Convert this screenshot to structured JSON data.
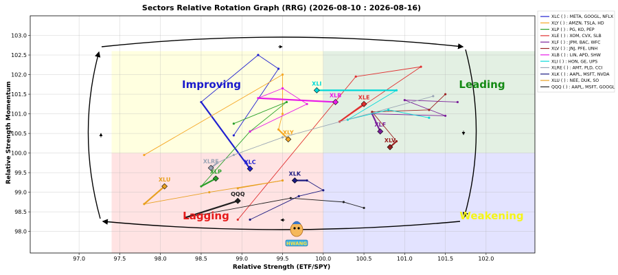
{
  "chart_data": {
    "type": "scatter",
    "title": "Sectors Relative Rotation Graph (RRG) (2026-08-10 : 2026-08-16)",
    "xlabel": "Relative Strength (ETF/SPY)",
    "ylabel": "Relative Strength Momentum",
    "xlim": [
      96.4,
      102.6
    ],
    "ylim": [
      97.45,
      103.5
    ],
    "xticks": [
      "97.0",
      "97.5",
      "98.0",
      "98.5",
      "99.0",
      "99.5",
      "100.0",
      "100.5",
      "101.0",
      "101.5",
      "102.0"
    ],
    "yticks": [
      "98.0",
      "98.5",
      "99.0",
      "99.5",
      "100.0",
      "100.5",
      "101.0",
      "101.5",
      "102.0",
      "102.5",
      "103.0"
    ],
    "center": [
      100,
      100
    ],
    "quadrants": {
      "improving": {
        "label": "Improving",
        "color": "#ffffe0",
        "text_color": "#1a1acc"
      },
      "leading": {
        "label": "Leading",
        "color": "#e3f0e3",
        "text_color": "#138a13"
      },
      "lagging": {
        "label": "Lagging",
        "color": "#ffe3e3",
        "text_color": "#e61a1a"
      },
      "weakening": {
        "label": "Weakening",
        "color": "#e3e3ff",
        "text_color": "#f5f518"
      }
    },
    "grid": true,
    "legend_position": "right",
    "series": [
      {
        "name": "XLC ( ) : META, GOOGL, NFLX",
        "label": "XLC",
        "color": "#2020d0",
        "points": [
          [
            98.9,
            100.45
          ],
          [
            99.45,
            102.15
          ],
          [
            99.2,
            102.5
          ],
          [
            98.5,
            101.3
          ],
          [
            99.1,
            99.6
          ]
        ]
      },
      {
        "name": "XLY ( ) : AMZN, TSLA, HD",
        "label": "XLY",
        "color": "#f5a623",
        "points": [
          [
            97.8,
            99.95
          ],
          [
            99.5,
            102.0
          ],
          [
            99.5,
            101.0
          ],
          [
            99.45,
            100.6
          ],
          [
            99.57,
            100.35
          ]
        ]
      },
      {
        "name": "XLP ( ) : PG, KO, PEP",
        "label": "XLP",
        "color": "#28a028",
        "points": [
          [
            98.9,
            100.75
          ],
          [
            99.55,
            101.3
          ],
          [
            99.1,
            100.55
          ],
          [
            98.5,
            99.15
          ],
          [
            98.68,
            99.35
          ]
        ]
      },
      {
        "name": "XLE ( ) : XOM, CVX, SLB",
        "label": "XLE",
        "color": "#e03030",
        "points": [
          [
            98.95,
            98.3
          ],
          [
            100.4,
            101.95
          ],
          [
            101.2,
            102.2
          ],
          [
            100.2,
            100.8
          ],
          [
            100.5,
            101.25
          ]
        ]
      },
      {
        "name": "XLF ( ) : JPM, BAC, WFC",
        "label": "XLF",
        "color": "#7a1f9a",
        "points": [
          [
            101.65,
            101.3
          ],
          [
            101.0,
            101.35
          ],
          [
            101.5,
            100.95
          ],
          [
            100.6,
            101.0
          ],
          [
            100.7,
            100.55
          ]
        ]
      },
      {
        "name": "XLV ( ) : JNJ, PFE, UNH",
        "label": "XLV",
        "color": "#9a2020",
        "points": [
          [
            101.5,
            101.5
          ],
          [
            101.3,
            101.1
          ],
          [
            100.6,
            101.05
          ],
          [
            100.9,
            100.3
          ],
          [
            100.82,
            100.15
          ]
        ]
      },
      {
        "name": "XLB ( ) : LIN, APD, SHW",
        "label": "XLB",
        "color": "#e81ae8",
        "points": [
          [
            99.1,
            100.55
          ],
          [
            99.8,
            101.25
          ],
          [
            99.5,
            101.65
          ],
          [
            99.2,
            101.4
          ],
          [
            100.15,
            101.3
          ]
        ]
      },
      {
        "name": "XLI ( ) : HON, GE, UPS",
        "label": "XLI",
        "color": "#00d8d8",
        "points": [
          [
            101.3,
            100.9
          ],
          [
            100.8,
            101.1
          ],
          [
            100.3,
            100.85
          ],
          [
            100.9,
            101.6
          ],
          [
            99.92,
            101.6
          ]
        ]
      },
      {
        "name": "XLRE ( ) : AMT, PLD, CCI",
        "label": "XLRE",
        "color": "#9aa5b5",
        "points": [
          [
            101.35,
            101.45
          ],
          [
            99.5,
            100.4
          ],
          [
            98.9,
            99.95
          ],
          [
            98.7,
            99.75
          ],
          [
            98.62,
            99.62
          ]
        ]
      },
      {
        "name": "XLK ( ) : AAPL, MSFT, NVDA",
        "label": "XLK",
        "color": "#1a1a80",
        "points": [
          [
            99.1,
            98.3
          ],
          [
            99.7,
            98.9
          ],
          [
            100.0,
            99.05
          ],
          [
            99.8,
            99.3
          ],
          [
            99.65,
            99.3
          ]
        ]
      },
      {
        "name": "XLU ( ) : NEE, DUK, SO",
        "label": "XLU",
        "color": "#e8a020",
        "points": [
          [
            98.95,
            99.1
          ],
          [
            99.5,
            99.3
          ],
          [
            98.6,
            99.0
          ],
          [
            97.8,
            98.7
          ],
          [
            98.05,
            99.15
          ]
        ]
      },
      {
        "name": "QQQ ( ) : AAPL, MSFT, GOOGL",
        "label": "QQQ",
        "color": "#202020",
        "points": [
          [
            100.5,
            98.6
          ],
          [
            100.25,
            98.75
          ],
          [
            99.6,
            98.85
          ],
          [
            98.3,
            98.35
          ],
          [
            98.95,
            98.78
          ]
        ]
      }
    ]
  },
  "watermark": {
    "text": "HWANG"
  }
}
